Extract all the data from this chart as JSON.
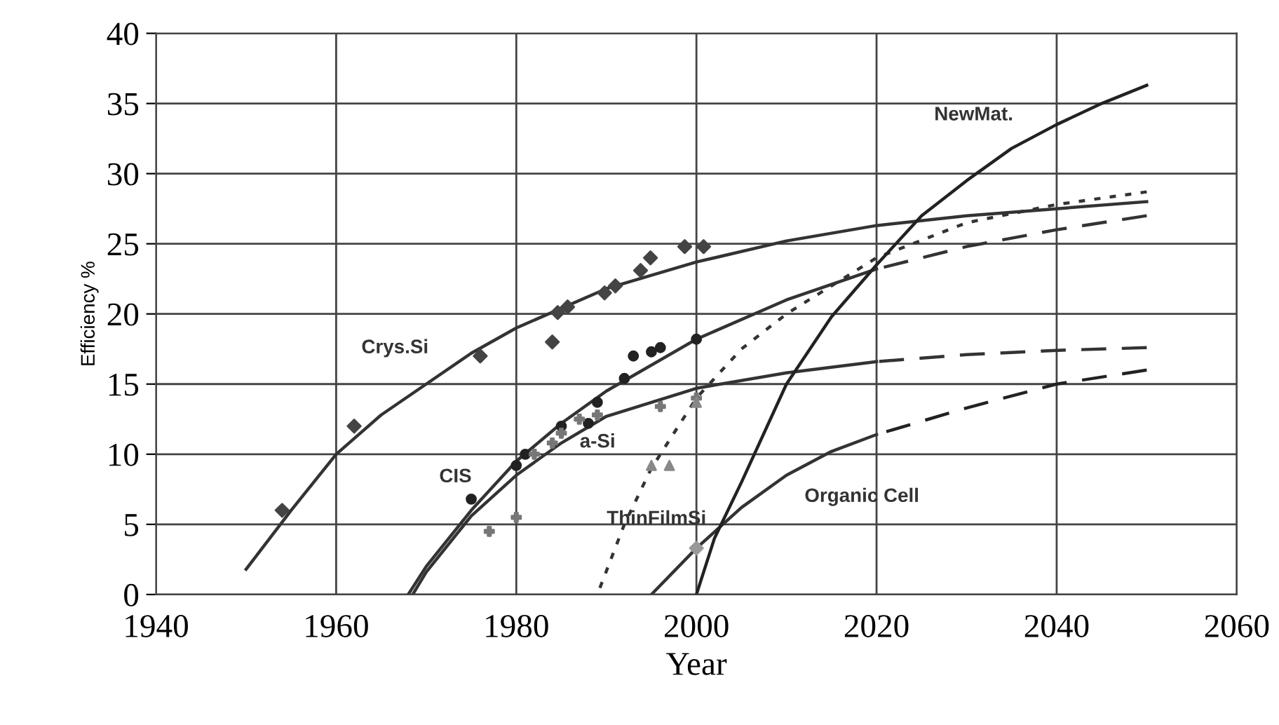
{
  "chart_data": {
    "type": "line",
    "xlabel": "Year",
    "ylabel": "Efficiency %",
    "xlim": [
      1940,
      2060
    ],
    "xticks": [
      1940,
      1960,
      1980,
      2000,
      2020,
      2040,
      2060
    ],
    "ylim": [
      0,
      40
    ],
    "yticks": [
      0,
      5,
      10,
      15,
      20,
      25,
      30,
      35,
      40
    ],
    "grid": true,
    "legend": false,
    "series": [
      {
        "type": "scatter",
        "marker": "diamond",
        "color": "#444444",
        "x": [
          1954,
          1962,
          1976,
          1984,
          1984.6,
          1985.7,
          1989.8,
          1991,
          1993.8,
          1994.9,
          1998.7,
          2000.8
        ],
        "values": [
          6,
          12,
          17,
          18,
          20.1,
          20.5,
          21.5,
          22,
          23.1,
          24,
          24.8,
          24.8
        ]
      },
      {
        "line_style": "solid",
        "color": "#333333",
        "x": [
          1950,
          1955,
          1960,
          1965,
          1970,
          1975,
          1980,
          1990,
          2000,
          2010,
          2020,
          2030,
          2040,
          2050
        ],
        "values": [
          1.8,
          6,
          10,
          12.8,
          15,
          17.2,
          19,
          21.8,
          23.7,
          25.2,
          26.3,
          27,
          27.5,
          28
        ]
      },
      {
        "type": "scatter",
        "marker": "circle",
        "color": "#222222",
        "x": [
          1975,
          1980,
          1981,
          1985,
          1988,
          1989,
          1992,
          1993,
          1995,
          1996,
          2000
        ],
        "values": [
          6.8,
          9.2,
          10,
          12,
          12.2,
          13.7,
          15.4,
          17,
          17.3,
          17.6,
          18.2
        ]
      },
      {
        "line_style": "solid",
        "color": "#333333",
        "x": [
          1968,
          1970,
          1975,
          1980,
          1985,
          1990,
          2000,
          2010,
          2020
        ],
        "values": [
          0,
          2,
          6,
          9.5,
          12.2,
          14.5,
          18.2,
          21,
          23.2
        ]
      },
      {
        "line_style": "dashed",
        "color": "#333333",
        "x": [
          2020,
          2030,
          2040,
          2050
        ],
        "values": [
          23.2,
          24.8,
          26,
          27
        ]
      },
      {
        "type": "scatter",
        "marker": "cross",
        "color": "#777777",
        "x": [
          1977,
          1980,
          1982,
          1984,
          1985,
          1987,
          1989,
          1996,
          2000
        ],
        "values": [
          4.5,
          5.5,
          10,
          10.8,
          11.5,
          12.5,
          12.8,
          13.4,
          14
        ]
      },
      {
        "line_style": "solid",
        "color": "#333333",
        "x": [
          1968.5,
          1970,
          1975,
          1980,
          1985,
          1990,
          2000,
          2010,
          2020
        ],
        "values": [
          0,
          1.6,
          5.6,
          8.5,
          10.8,
          12.7,
          14.7,
          15.8,
          16.6
        ]
      },
      {
        "line_style": "dashed",
        "color": "#333333",
        "x": [
          2020,
          2030,
          2040,
          2050
        ],
        "values": [
          16.6,
          17.1,
          17.4,
          17.6
        ]
      },
      {
        "type": "scatter",
        "marker": "triangle",
        "color": "#888888",
        "x": [
          1995,
          1997,
          2000
        ],
        "values": [
          9.2,
          9.2,
          13.7
        ]
      },
      {
        "line_style": "dotted",
        "color": "#333333",
        "x": [
          1989,
          1992,
          1995,
          2000,
          2005,
          2010,
          2020,
          2030,
          2040,
          2050
        ],
        "values": [
          0,
          5,
          9,
          14,
          17.5,
          20,
          24,
          26.5,
          27.8,
          28.7
        ]
      },
      {
        "type": "scatter",
        "marker": "diamond",
        "color": "#999999",
        "x": [
          2000
        ],
        "values": [
          3.3
        ]
      },
      {
        "line_style": "solid",
        "color": "#333333",
        "x": [
          1995,
          2000,
          2005,
          2010,
          2015,
          2020
        ],
        "values": [
          0,
          3.3,
          6.2,
          8.5,
          10.2,
          11.4
        ]
      },
      {
        "line_style": "dashed",
        "color": "#222222",
        "x": [
          2020,
          2030,
          2040,
          2050
        ],
        "values": [
          11.4,
          13.3,
          15,
          16
        ]
      },
      {
        "line_style": "solid",
        "color": "#222222",
        "x": [
          2000,
          2002,
          2005,
          2010,
          2015,
          2020,
          2025,
          2030,
          2035,
          2040,
          2045,
          2050
        ],
        "values": [
          0,
          4,
          8,
          15,
          19.8,
          23.5,
          27,
          29.5,
          31.8,
          33.5,
          35,
          36.3
        ]
      }
    ],
    "annotations": [
      "Crys.Si",
      "CIS",
      "a-Si",
      "ThinFilmSi",
      "Organic Cell",
      "NewMat."
    ]
  }
}
